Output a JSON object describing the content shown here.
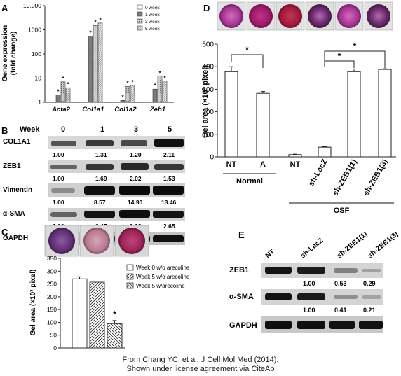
{
  "panels": {
    "A": {
      "letter": "A",
      "ylabel_line1": "Gene expression",
      "ylabel_line2": "(fold change)",
      "legend": [
        "0 week",
        "1 week",
        "3 week",
        "5 week"
      ],
      "star": "*"
    },
    "B": {
      "letter": "B",
      "header": "Week",
      "columns": [
        "0",
        "1",
        "3",
        "5"
      ],
      "rows": [
        {
          "label": "COL1A1",
          "values": [
            "1.00",
            "1.31",
            "1.20",
            "2.11"
          ]
        },
        {
          "label": "ZEB1",
          "values": [
            "1.00",
            "1.69",
            "2.02",
            "1.53"
          ]
        },
        {
          "label": "Vimentin",
          "values": [
            "1.00",
            "8.57",
            "14.90",
            "13.46"
          ]
        },
        {
          "label": "α-SMA",
          "values": [
            "1.00",
            "2.47",
            "3.03",
            "2.65"
          ]
        },
        {
          "label": "GAPDH",
          "values": []
        }
      ]
    },
    "C": {
      "letter": "C",
      "ylabel": "Gel area (×10³ pixel)",
      "legend": [
        "Week 0 w/o arecoline",
        "Week 5 w/o arecoline",
        "Week 5 w/arecoline"
      ],
      "star": "*"
    },
    "D": {
      "letter": "D",
      "ylabel": "Gel area (×10³ pixel)",
      "xticks": [
        "NT",
        "A",
        "NT",
        "sh-LacZ",
        "sh-ZEB1(1)",
        "sh-ZEB1(3)"
      ],
      "group_normal": "Normal",
      "group_osf": "OSF",
      "star": "*"
    },
    "E": {
      "letter": "E",
      "lanes": [
        "NT",
        "sh-LacZ",
        "sh-ZEB1(1)",
        "sh-ZEB1(3)"
      ],
      "rows": [
        {
          "label": "ZEB1",
          "values": [
            "1.00",
            "0.53",
            "0.29"
          ]
        },
        {
          "label": "α-SMA",
          "values": [
            "1.00",
            "0.41",
            "0.21"
          ]
        },
        {
          "label": "GAPDH",
          "values": []
        }
      ]
    }
  },
  "chart_data": [
    {
      "panel": "A",
      "type": "bar",
      "categories": [
        "Acta2",
        "Col1a1",
        "Col1a2",
        "Zeb1"
      ],
      "series": [
        {
          "name": "0 week",
          "values": [
            1,
            1,
            1,
            1
          ]
        },
        {
          "name": "1 week",
          "values": [
            2,
            550,
            1.2,
            3.5
          ]
        },
        {
          "name": "3 week",
          "values": [
            7,
            1500,
            4.5,
            12
          ]
        },
        {
          "name": "5 week",
          "values": [
            4,
            1900,
            5,
            7.5
          ]
        }
      ],
      "ylabel": "Gene expression (fold change)",
      "yscale": "log",
      "ylim": [
        1,
        10000
      ],
      "yticks": [
        "1",
        "10",
        "100",
        "1000",
        "10,000"
      ]
    },
    {
      "panel": "C",
      "type": "bar",
      "categories": [
        "Week 0 w/o arecoline",
        "Week 5 w/o arecoline",
        "Week 5 w/arecoline"
      ],
      "values": [
        270,
        257,
        95
      ],
      "errors": [
        8,
        0,
        12
      ],
      "ylabel": "Gel area (×10³ pixel)",
      "ylim": [
        0,
        350
      ],
      "yticks": [
        "0",
        "50",
        "100",
        "150",
        "200",
        "250",
        "300",
        "350"
      ]
    },
    {
      "panel": "D",
      "type": "bar",
      "categories": [
        "NT",
        "A",
        "NT",
        "sh-LacZ",
        "sh-ZEB1(1)",
        "sh-ZEB1(3)"
      ],
      "values": [
        378,
        282,
        10,
        43,
        378,
        388
      ],
      "errors": [
        22,
        8,
        2,
        2,
        12,
        3
      ],
      "ylabel": "Gel area (×10³ pixel)",
      "ylim": [
        0,
        500
      ],
      "yticks": [
        "0",
        "100",
        "200",
        "300",
        "400",
        "500"
      ]
    }
  ],
  "caption": {
    "line1": "From Chang YC, et al. J Cell Mol Med (2014).",
    "line2": "Shown under license agreement via CiteAb"
  }
}
